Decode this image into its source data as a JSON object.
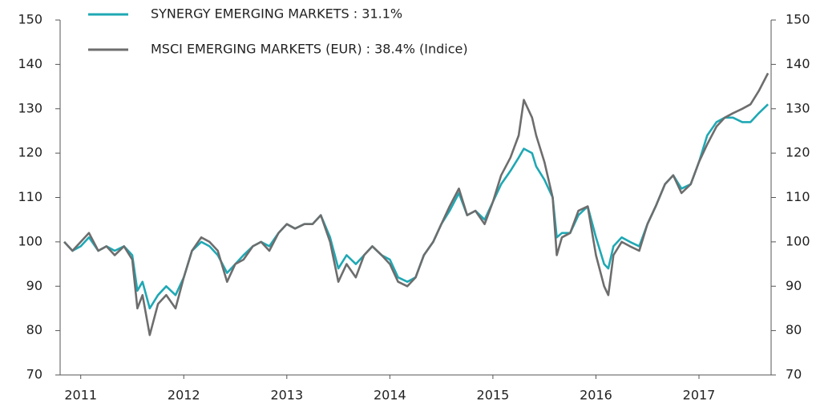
{
  "chart_data": {
    "type": "line",
    "x": [
      2010.84,
      2010.92,
      2011.0,
      2011.08,
      2011.17,
      2011.25,
      2011.33,
      2011.42,
      2011.5,
      2011.55,
      2011.6,
      2011.67,
      2011.75,
      2011.83,
      2011.92,
      2012.0,
      2012.08,
      2012.17,
      2012.25,
      2012.33,
      2012.42,
      2012.5,
      2012.58,
      2012.67,
      2012.75,
      2012.83,
      2012.92,
      2013.0,
      2013.08,
      2013.17,
      2013.25,
      2013.33,
      2013.42,
      2013.5,
      2013.58,
      2013.67,
      2013.75,
      2013.83,
      2013.92,
      2014.0,
      2014.08,
      2014.17,
      2014.25,
      2014.33,
      2014.42,
      2014.5,
      2014.58,
      2014.67,
      2014.75,
      2014.83,
      2014.92,
      2015.0,
      2015.08,
      2015.17,
      2015.25,
      2015.3,
      2015.38,
      2015.42,
      2015.5,
      2015.58,
      2015.62,
      2015.67,
      2015.75,
      2015.83,
      2015.92,
      2016.0,
      2016.08,
      2016.12,
      2016.17,
      2016.25,
      2016.33,
      2016.42,
      2016.5,
      2016.58,
      2016.67,
      2016.75,
      2016.83,
      2016.92,
      2017.0,
      2017.08,
      2017.17,
      2017.25,
      2017.33,
      2017.42,
      2017.5,
      2017.58,
      2017.67
    ],
    "series": [
      {
        "name": "SYNERGY EMERGING MARKETS : 31.1%",
        "color": "#1fa8b4",
        "values": [
          100,
          98,
          99,
          101,
          98,
          99,
          98,
          99,
          97,
          89,
          91,
          85,
          88,
          90,
          88,
          92,
          98,
          100,
          99,
          97,
          93,
          95,
          97,
          99,
          100,
          99,
          102,
          104,
          103,
          104,
          104,
          106,
          101,
          94,
          97,
          95,
          97,
          99,
          97,
          96,
          92,
          91,
          92,
          97,
          100,
          104,
          107,
          111,
          106,
          107,
          105,
          109,
          113,
          116,
          119,
          121,
          120,
          117,
          114,
          110,
          101,
          102,
          102,
          106,
          108,
          101,
          95,
          94,
          99,
          101,
          100,
          99,
          104,
          108,
          113,
          115,
          112,
          113,
          118,
          124,
          127,
          128,
          128,
          127,
          127,
          129,
          131
        ]
      },
      {
        "name": "MSCI EMERGING MARKETS (EUR) : 38.4% (Indice)",
        "color": "#6d6d6d",
        "values": [
          100,
          98,
          100,
          102,
          98,
          99,
          97,
          99,
          96,
          85,
          88,
          79,
          86,
          88,
          85,
          92,
          98,
          101,
          100,
          98,
          91,
          95,
          96,
          99,
          100,
          98,
          102,
          104,
          103,
          104,
          104,
          106,
          100,
          91,
          95,
          92,
          97,
          99,
          97,
          95,
          91,
          90,
          92,
          97,
          100,
          104,
          108,
          112,
          106,
          107,
          104,
          109,
          115,
          119,
          124,
          132,
          128,
          124,
          118,
          110,
          97,
          101,
          102,
          107,
          108,
          97,
          90,
          88,
          97,
          100,
          99,
          98,
          104,
          108,
          113,
          115,
          111,
          113,
          118,
          122,
          126,
          128,
          129,
          130,
          131,
          134,
          138
        ]
      }
    ],
    "xlim": [
      2010.8,
      2017.7
    ],
    "xticks": [
      2011,
      2012,
      2013,
      2014,
      2015,
      2016,
      2017
    ],
    "ylim": [
      70,
      150
    ],
    "yticks": [
      70,
      80,
      90,
      100,
      110,
      120,
      130,
      140,
      150
    ],
    "y2lim": [
      70,
      150
    ],
    "y2ticks": [
      70,
      80,
      90,
      100,
      110,
      120,
      130,
      140,
      150
    ],
    "legend": "top-left"
  }
}
